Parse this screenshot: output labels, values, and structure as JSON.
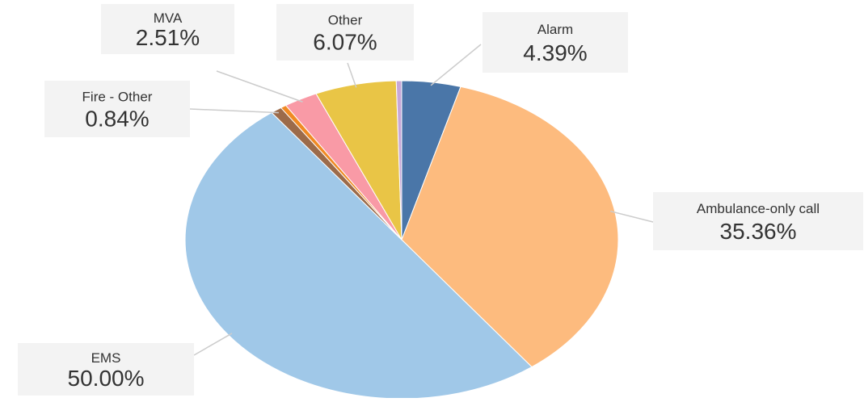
{
  "chart_data": {
    "type": "pie",
    "categories": [
      "Alarm",
      "Ambulance-only call",
      "EMS",
      "Fire - Other",
      null,
      "MVA",
      "Other",
      null
    ],
    "values": [
      4.39,
      35.36,
      50.0,
      0.84,
      0.43,
      2.51,
      6.07,
      0.4
    ],
    "value_labels": [
      "4.39%",
      "35.36%",
      "50.00%",
      "0.84%",
      null,
      "2.51%",
      "6.07%",
      null
    ],
    "colors": [
      "#4a76a8",
      "#fdbb7e",
      "#a0c8e8",
      "#9c6b4a",
      "#f08a24",
      "#f99aa6",
      "#e9c546",
      "#c7a8d8"
    ]
  }
}
